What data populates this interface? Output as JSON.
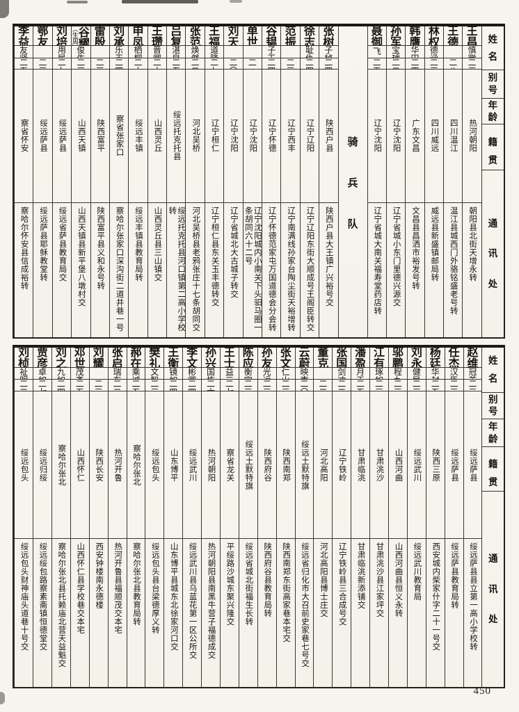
{
  "document": {
    "page_number": "450"
  },
  "tables": [
    {
      "headers": {
        "name": "姓名",
        "alias": "别号",
        "age": "年龄",
        "origin": "籍贯",
        "contact": "通讯处"
      },
      "divider": {
        "label": "骑兵队",
        "after_index": 5
      },
      "persons": [
        {
          "name": "王昌五",
          "alias": "慎徽",
          "age": "二三",
          "origin": "热河朝阳",
          "contact": "朝阳县北街天增永转"
        },
        {
          "name": "王德先",
          "alias": "",
          "age": "二八",
          "origin": "四川温江",
          "contact": "温江县城西门外骆铭盛老号转"
        },
        {
          "name": "林权",
          "alias": "德涵",
          "age": "二三",
          "origin": "四川威远",
          "contact": "威远县新盛镇邮局转"
        },
        {
          "name": "韩膺",
          "alias": "华田",
          "age": "二四",
          "origin": "广东文昌",
          "contact": "文昌县昌洒市裕发号转"
        },
        {
          "name": "孙军良",
          "alias": "宝璿",
          "age": "二二",
          "origin": "辽宁沈阳",
          "contact": "辽宁省城小东门里德兴源交"
        },
        {
          "name": "聂御风",
          "alias": "飞",
          "age": "二五",
          "origin": "辽宁沈阳",
          "contact": "辽宁省城大南关福寿堂药店转"
        },
        {
          "name": "张树楠",
          "alias": "子桢",
          "age": "二四",
          "origin": "陕西户县",
          "contact": "陕西户县大王镇广兴裕号交"
        },
        {
          "name": "徐志超",
          "alias": "耻仇",
          "age": "二四",
          "origin": "辽宁辽阳",
          "contact": "辽宁辽阳东街大顺成号王阁臣转交"
        },
        {
          "name": "范振春",
          "alias": "",
          "age": "二三",
          "origin": "辽宁西丰",
          "contact": "辽宁南满线孙家台陶尘街天裕增转"
        },
        {
          "name": "谷韫山",
          "alias": "子玉",
          "age": "二四",
          "origin": "辽宁怀德",
          "contact": "辽宁怀德范家屯万国道德会分会转"
        },
        {
          "name": "单世荣",
          "alias": "",
          "age": "二一",
          "origin": "辽宁沈阳",
          "contact": "辽宁沈阳城内小南关下头驲马圈一条胡同六十二号"
        },
        {
          "name": "刘天魁",
          "alias": "",
          "age": "二〇",
          "origin": "辽宁沈阳",
          "contact": "辽宁省城北大古城子转交"
        },
        {
          "name": "王福兴",
          "alias": "道隆",
          "age": "二七",
          "origin": "辽宁桓仁",
          "contact": "辽宁桓仁县东关玉丰德转交"
        },
        {
          "name": "张范新",
          "alias": "焕然",
          "age": "二二",
          "origin": "河北吴桥",
          "contact": "河北吴桥县老鸦张庄十七条胡同交"
        },
        {
          "name": "吕复源",
          "alias": "湛泉",
          "age": "二五",
          "origin": "绥远托克托县",
          "contact": "绥远托克托县河口镇第二高小学校转"
        },
        {
          "name": "王瓒",
          "alias": "晋卿",
          "age": "二六",
          "origin": "山西灵丘",
          "contact": "山西灵丘县三山镇交"
        },
        {
          "name": "申凤鸣",
          "alias": "栖桐",
          "age": "二六",
          "origin": "绥远丰镇",
          "contact": "绥远丰镇县教育局转"
        },
        {
          "name": "刘承尧",
          "alias": "乐天",
          "age": "二四",
          "origin": "察省张家口",
          "contact": "察哈尔张家口深沟街二道井巷一号"
        },
        {
          "name": "雷殷",
          "alias": "",
          "age": "二三",
          "origin": "陕西富平",
          "contact": "陕西富平县义和永号转"
        },
        {
          "name": "谷耀仑",
          "name_note": "(生周)",
          "alias": "俊生",
          "age": "二三",
          "origin": "山西天镇",
          "contact": "山西天镇县新平堡八墩村交"
        },
        {
          "name": "刘培裕",
          "alias": "用民",
          "age": "二七",
          "origin": "绥远萨县",
          "contact": "绥远省萨县教育局交"
        },
        {
          "name": "鄂友三",
          "alias": "",
          "age": "二三",
          "origin": "绥远萨县",
          "contact": "绥远萨县耶稣教堂转"
        },
        {
          "name": "李益增",
          "alias": "友贤",
          "age": "二五",
          "origin": "察省怀安",
          "contact": "察哈尔怀安县信成裕转"
        }
      ]
    },
    {
      "headers": {
        "name": "姓名",
        "alias": "别号",
        "age": "年龄",
        "origin": "籍贯",
        "contact": "通讯处"
      },
      "divider": null,
      "persons": [
        {
          "name": "赵维威",
          "alias": "冠英",
          "age": "二三",
          "origin": "绥远萨县",
          "contact": "绥远萨县县立第一高小学校转"
        },
        {
          "name": "任杰",
          "alias": "汉臣",
          "age": "二三",
          "origin": "绥远萨县",
          "contact": "绥远萨县教育局转"
        },
        {
          "name": "杨廷桢",
          "alias": "华封",
          "age": "二五",
          "origin": "陕西三原",
          "contact": "西安城内柴家什字二十一号交"
        },
        {
          "name": "刘永鲁",
          "alias": "健民",
          "age": "二三",
          "origin": "绥远武川",
          "contact": "绥远武川教育局"
        },
        {
          "name": "邬鹏翔",
          "alias": "程九",
          "age": "二三",
          "origin": "山西河曲",
          "contact": "山西河曲县恒义永转"
        },
        {
          "name": "江有璞",
          "alias": "琢如",
          "age": "二三",
          "origin": "甘肃洮沙",
          "contact": "甘肃洮沙县江家坪交"
        },
        {
          "name": "潘盈汉",
          "alias": "月天",
          "age": "二五",
          "origin": "甘肃临洮",
          "contact": "甘肃临洮新添铺交"
        },
        {
          "name": "张国栋",
          "alias": "剑冲",
          "age": "二二",
          "origin": "辽宁铁岭",
          "contact": "辽宁铁岭县三合成号交"
        },
        {
          "name": "董克恭",
          "alias": "",
          "age": "二二",
          "origin": "河北高阳",
          "contact": "河北高阳县博士庄交"
        },
        {
          "name": "云蔚",
          "alias": "映南",
          "age": "二〇",
          "origin": "绥远土默特旗",
          "contact": "绥远省归化市大召前史家巷七号交"
        },
        {
          "name": "张文德",
          "alias": "仁山",
          "age": "二三",
          "origin": "陕西南郑",
          "contact": "陕西南郑东街高家巷本宅交"
        },
        {
          "name": "孙友雄",
          "alias": "光远",
          "age": "二三",
          "origin": "陕西府谷",
          "contact": "陕西府谷县教育局转"
        },
        {
          "name": "陈应权",
          "alias": "衡宇",
          "age": "二三",
          "origin": "绥远土默特旗",
          "contact": "绥远省城北街福生长转"
        },
        {
          "name": "王士谊",
          "alias": "益三",
          "age": "二七",
          "origin": "察省龙关",
          "contact": "平绥路沙城东聚兴隆交"
        },
        {
          "name": "孙兴中",
          "alias": "国栋",
          "age": "二六",
          "origin": "热河朝阳",
          "contact": "热河朝阳县南黑牛营子福德成交"
        },
        {
          "name": "李文",
          "alias": "彬卿",
          "age": "二四",
          "origin": "绥远武川",
          "contact": "绥远武川县乌蓝花第一区公所交"
        },
        {
          "name": "王衡",
          "alias": "镜如",
          "age": "二四",
          "origin": "山东博平",
          "contact": "山东博平县城东北徐家河口交"
        },
        {
          "name": "樊礼",
          "alias": "文智",
          "age": "二三",
          "origin": "绥远包头",
          "contact": "绥远包头县台梁德厚义转"
        },
        {
          "name": "郝在忠",
          "alias": "乘诚",
          "age": "二五",
          "origin": "察哈尔张北",
          "contact": "察哈尔张北县教育局转"
        },
        {
          "name": "张启祥",
          "alias": "瑞东",
          "age": "二二",
          "origin": "热河开鲁",
          "contact": "热河开鲁县福顺茂交本宅"
        },
        {
          "name": "刘耀宗",
          "alias": "",
          "age": "二三",
          "origin": "陕西长安",
          "contact": "西安钟楼南永德楼"
        },
        {
          "name": "邓世兴",
          "alias": "茂斋",
          "age": "二五",
          "origin": "山西怀仁",
          "contact": "山西怀仁县学校巷交本宅"
        },
        {
          "name": "刘之升",
          "alias": "九如",
          "age": "二四",
          "origin": "察哈尔张北",
          "contact": "察哈尔张北县托赖庙北营天益魁交"
        },
        {
          "name": "贾彦",
          "alias": "卓如",
          "age": "二七",
          "origin": "绥远归绥",
          "contact": "绥远绥包路察素斋镇恒德堂交"
        },
        {
          "name": "刘桢",
          "alias": "祉明",
          "age": "二二",
          "origin": "绥远包头",
          "contact": "绥远包头财神庙头道巷十号交"
        }
      ]
    }
  ]
}
